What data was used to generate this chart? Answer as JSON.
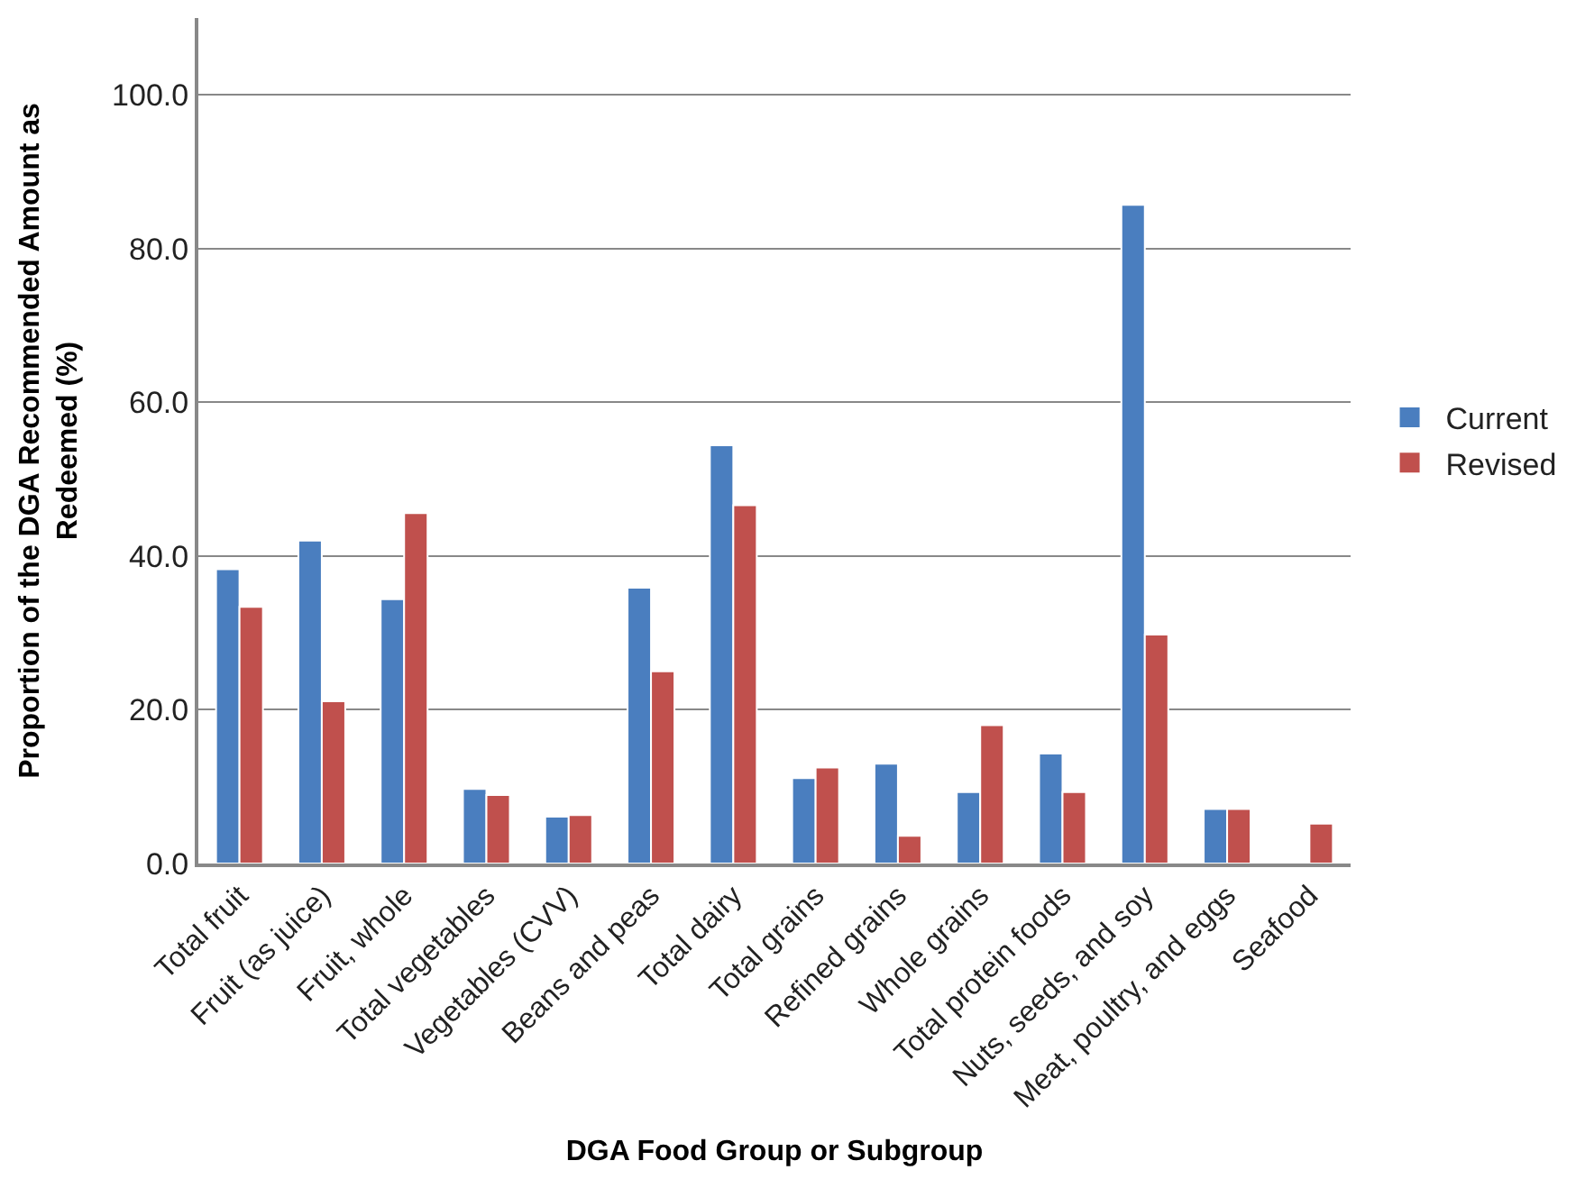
{
  "chart_data": {
    "type": "bar",
    "xlabel": "DGA Food Group or Subgroup",
    "ylabel": "Proportion of the DGA Recommended Amount as Redeemed (%)",
    "categories": [
      "Total fruit",
      "Fruit (as juice)",
      "Fruit, whole",
      "Total vegetables",
      "Vegetables (CVV)",
      "Beans and peas",
      "Total dairy",
      "Total grains",
      "Refined grains",
      "Whole grains",
      "Total protein foods",
      "Nuts, seeds, and soy",
      "Meat, poultry, and eggs",
      "Seafood"
    ],
    "series": [
      {
        "name": "Current",
        "color": "#4a7ebf",
        "values": [
          38.3,
          42.0,
          34.4,
          9.7,
          6.1,
          35.9,
          54.4,
          11.1,
          13.0,
          9.3,
          14.3,
          85.7,
          7.1,
          null
        ]
      },
      {
        "name": "Revised",
        "color": "#c0504d",
        "values": [
          33.4,
          21.1,
          45.6,
          8.9,
          6.3,
          25.0,
          46.6,
          12.5,
          3.6,
          18.0,
          9.3,
          29.8,
          7.1,
          5.2
        ]
      }
    ],
    "ylim": [
      0,
      110
    ],
    "yticks": [
      {
        "value": 0,
        "label": "0.0"
      },
      {
        "value": 20,
        "label": "20.0"
      },
      {
        "value": 40,
        "label": "40.0"
      },
      {
        "value": 60,
        "label": "60.0"
      },
      {
        "value": 80,
        "label": "80.0"
      },
      {
        "value": 100,
        "label": "100.0"
      }
    ],
    "grid": "y",
    "legend": "right"
  }
}
